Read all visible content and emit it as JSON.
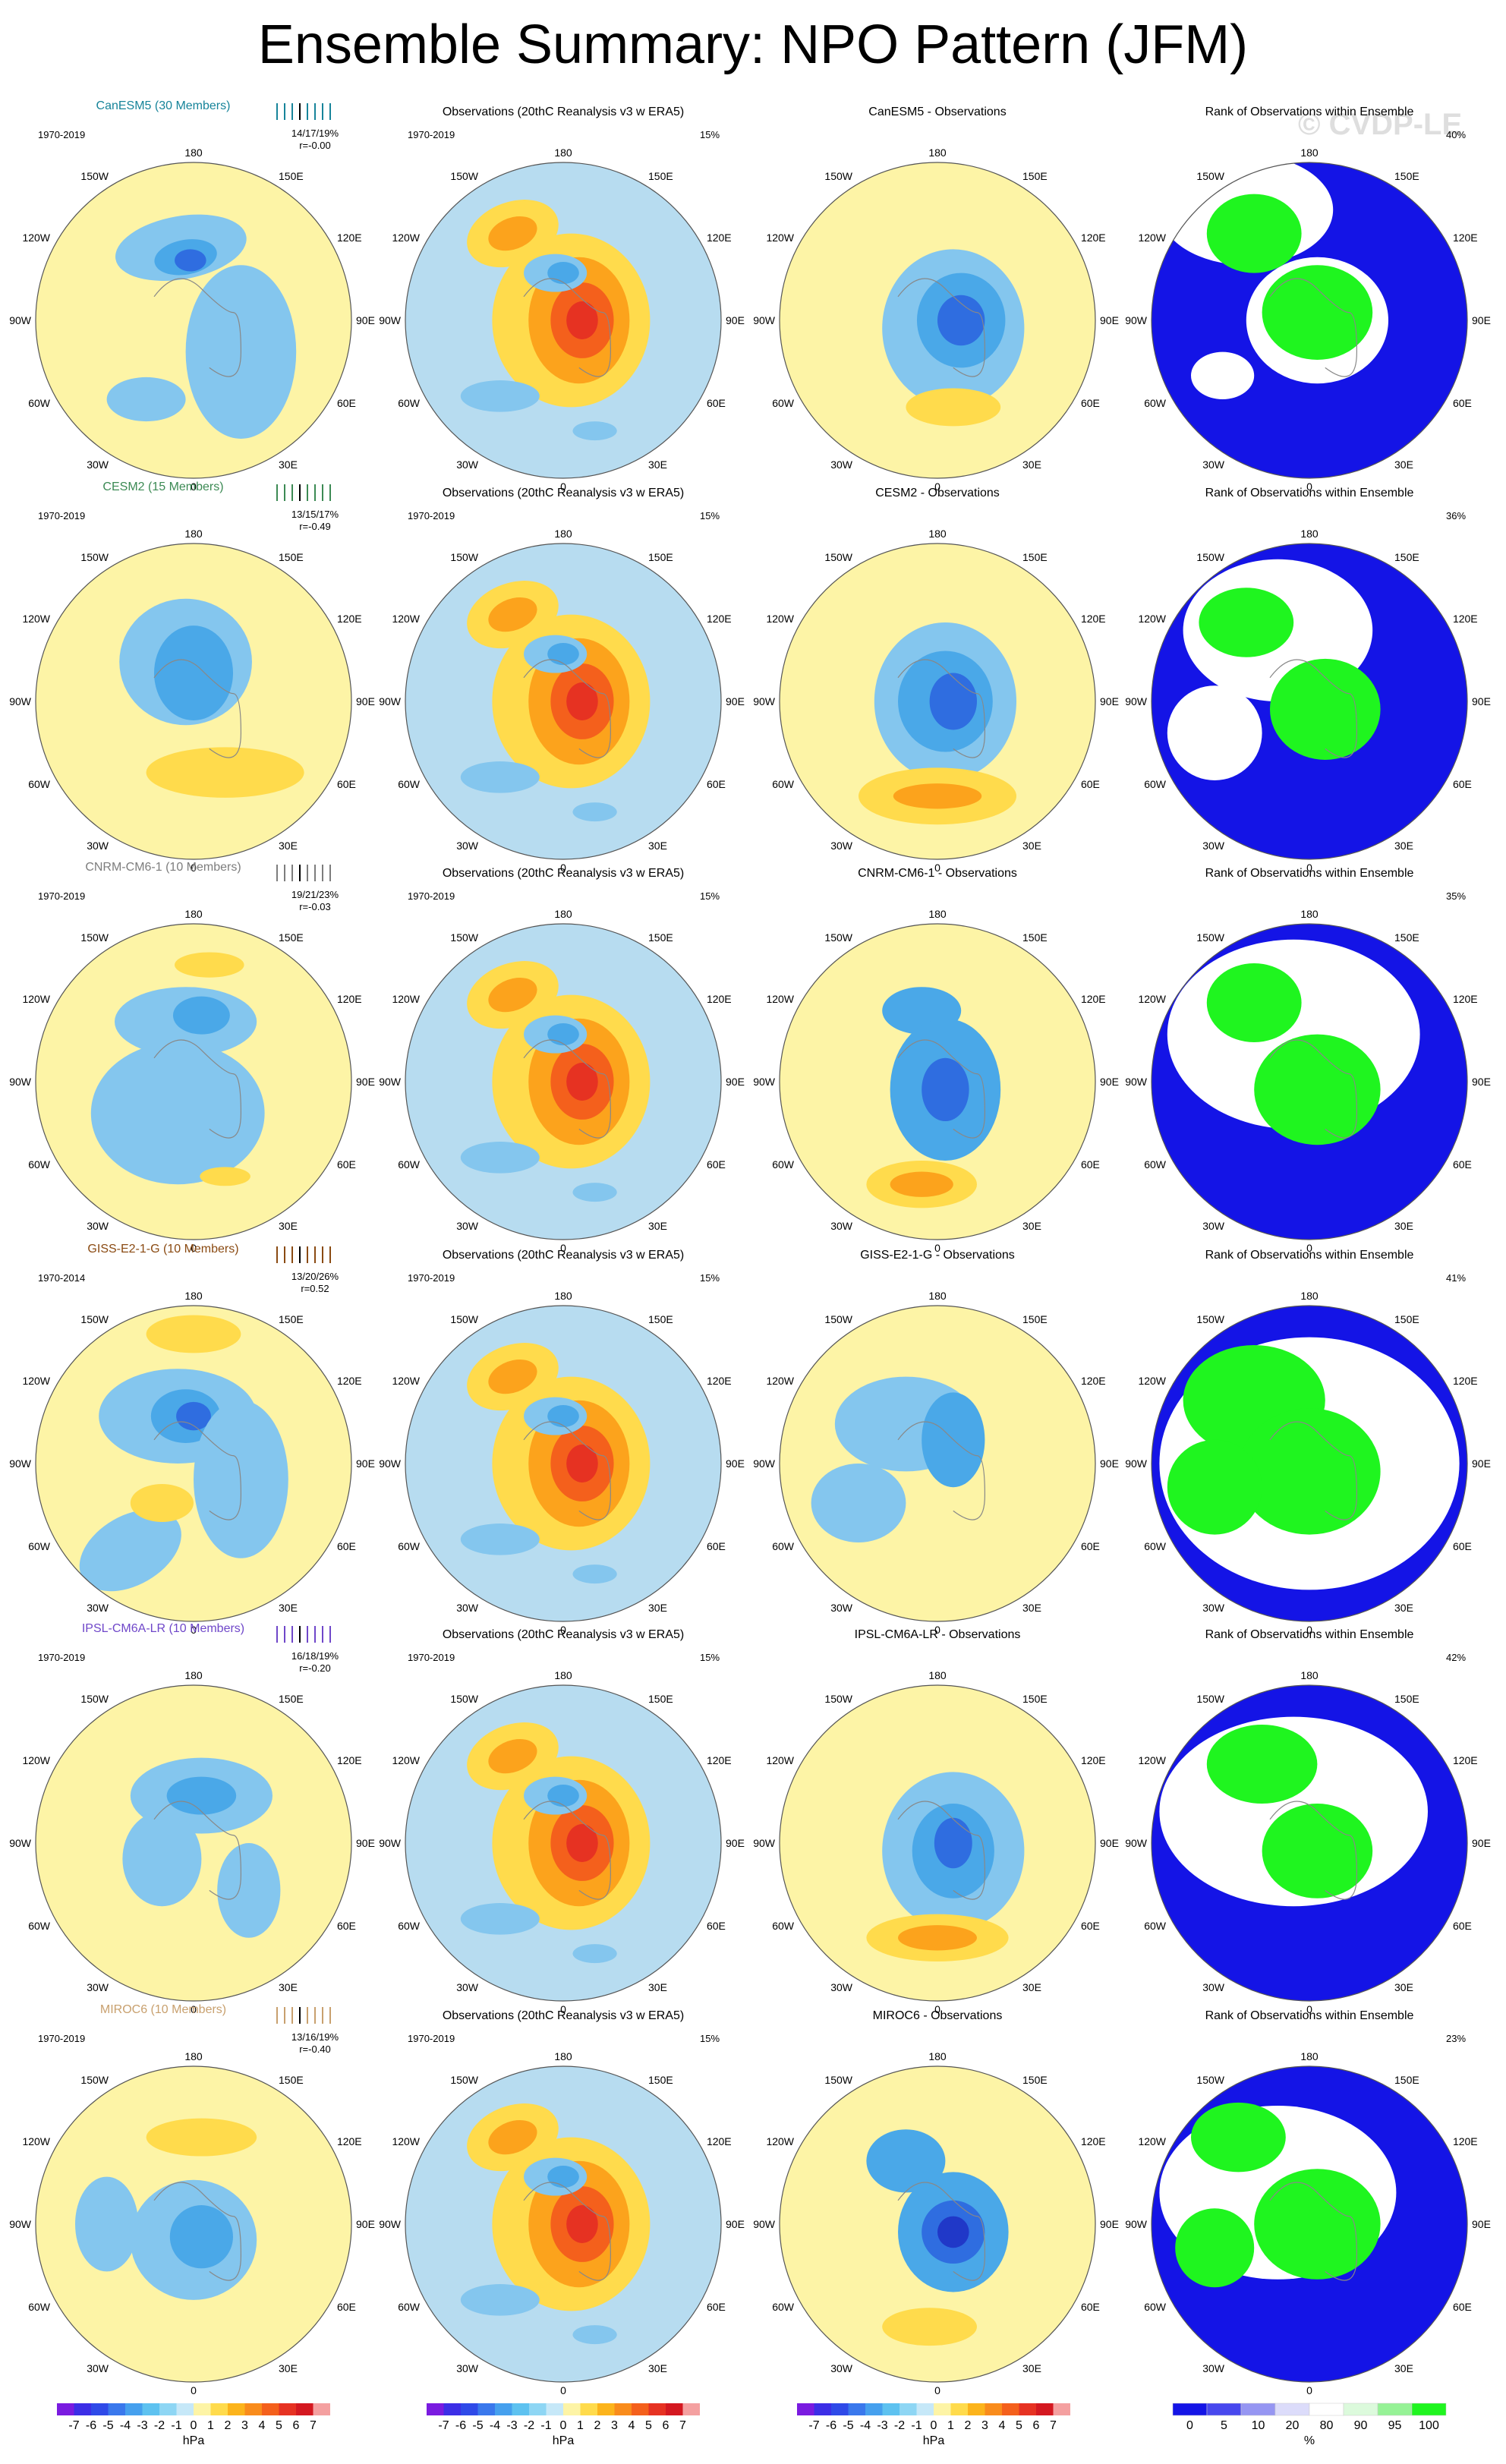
{
  "title": "Ensemble Summary: NPO Pattern (JFM)",
  "watermark": "© CVDP-LE",
  "colors": {
    "ocean": "#b7dcf0",
    "land": "#fdf4a6",
    "neg_light": "#84c6ee",
    "neg_mid": "#4aa8e8",
    "neg_strong": "#2f6de0",
    "neg_core": "#2038c8",
    "pos_light": "#ffdb4c",
    "pos_mid": "#fca31c",
    "pos_strong": "#f4601c",
    "pos_core": "#e63222",
    "rank_blue": "#1414e6",
    "rank_green": "#1ff51f",
    "rank_white": "#ffffff",
    "rank_lav": "#dcdcfa"
  },
  "map_labels": {
    "top": "180",
    "bottom": "0",
    "upper_left": "150W",
    "upper_right": "150E",
    "mid_upper_left": "120W",
    "mid_upper_right": "120E",
    "left": "90W",
    "right": "90E",
    "mid_lower_left": "60W",
    "mid_lower_right": "60E",
    "lower_left": "30W",
    "lower_right": "30E"
  },
  "rows": [
    {
      "model": "CanESM5 (30 Members)",
      "model_color": "#17849a",
      "period": "1970-2019",
      "stats": "14/17/19%",
      "corr": "r=-0.00",
      "obs_title": "Observations (20thC Reanalysis v3 w ERA5)",
      "obs_period": "1970-2019",
      "obs_pct": "15%",
      "diff_title": "CanESM5 - Observations",
      "rank_title": "Rank of Observations within Ensemble",
      "rank_pct": "40%"
    },
    {
      "model": "CESM2 (15 Members)",
      "model_color": "#3c8a54",
      "period": "1970-2019",
      "stats": "13/15/17%",
      "corr": "r=-0.49",
      "obs_title": "Observations (20thC Reanalysis v3 w ERA5)",
      "obs_period": "1970-2019",
      "obs_pct": "15%",
      "diff_title": "CESM2 - Observations",
      "rank_title": "Rank of Observations within Ensemble",
      "rank_pct": "36%"
    },
    {
      "model": "CNRM-CM6-1 (10 Members)",
      "model_color": "#7d7d7d",
      "period": "1970-2019",
      "stats": "19/21/23%",
      "corr": "r=-0.03",
      "obs_title": "Observations (20thC Reanalysis v3 w ERA5)",
      "obs_period": "1970-2019",
      "obs_pct": "15%",
      "diff_title": "CNRM-CM6-1 - Observations",
      "rank_title": "Rank of Observations within Ensemble",
      "rank_pct": "35%"
    },
    {
      "model": "GISS-E2-1-G (10 Members)",
      "model_color": "#8a4a12",
      "period": "1970-2014",
      "stats": "13/20/26%",
      "corr": "r=0.52",
      "obs_title": "Observations (20thC Reanalysis v3 w ERA5)",
      "obs_period": "1970-2019",
      "obs_pct": "15%",
      "diff_title": "GISS-E2-1-G - Observations",
      "rank_title": "Rank of Observations within Ensemble",
      "rank_pct": "41%"
    },
    {
      "model": "IPSL-CM6A-LR (10 Members)",
      "model_color": "#6f47c9",
      "period": "1970-2019",
      "stats": "16/18/19%",
      "corr": "r=-0.20",
      "obs_title": "Observations (20thC Reanalysis v3 w ERA5)",
      "obs_period": "1970-2019",
      "obs_pct": "15%",
      "diff_title": "IPSL-CM6A-LR - Observations",
      "rank_title": "Rank of Observations within Ensemble",
      "rank_pct": "42%"
    },
    {
      "model": "MIROC6 (10 Members)",
      "model_color": "#c8a06e",
      "period": "1970-2019",
      "stats": "13/16/19%",
      "corr": "r=-0.40",
      "obs_title": "Observations (20thC Reanalysis v3 w ERA5)",
      "obs_period": "1970-2019",
      "obs_pct": "15%",
      "diff_title": "MIROC6 - Observations",
      "rank_title": "Rank of Observations within Ensemble",
      "rank_pct": "23%"
    }
  ],
  "colorbar_hpa": {
    "labels": [
      "-7",
      "-6",
      "-5",
      "-4",
      "-3",
      "-2",
      "-1",
      "0",
      "1",
      "2",
      "3",
      "4",
      "5",
      "6",
      "7"
    ],
    "colors": [
      "#7a1be0",
      "#3c2ee6",
      "#2f4ae8",
      "#3a78ec",
      "#46a0ee",
      "#5ec2f0",
      "#8ed6f4",
      "#c6e8f8",
      "#fdf4a6",
      "#ffdb4c",
      "#fcb41c",
      "#f98c1c",
      "#f4601c",
      "#e63222",
      "#d41820",
      "#f4a0a0"
    ],
    "unit": "hPa"
  },
  "colorbar_rank": {
    "labels": [
      "0",
      "5",
      "10",
      "20",
      "80",
      "90",
      "95",
      "100"
    ],
    "colors": [
      "#1414e6",
      "#4848ee",
      "#9696f2",
      "#dcdcfa",
      "#ffffff",
      "#dcfadc",
      "#96f296",
      "#1ff51f"
    ],
    "unit": "%"
  }
}
